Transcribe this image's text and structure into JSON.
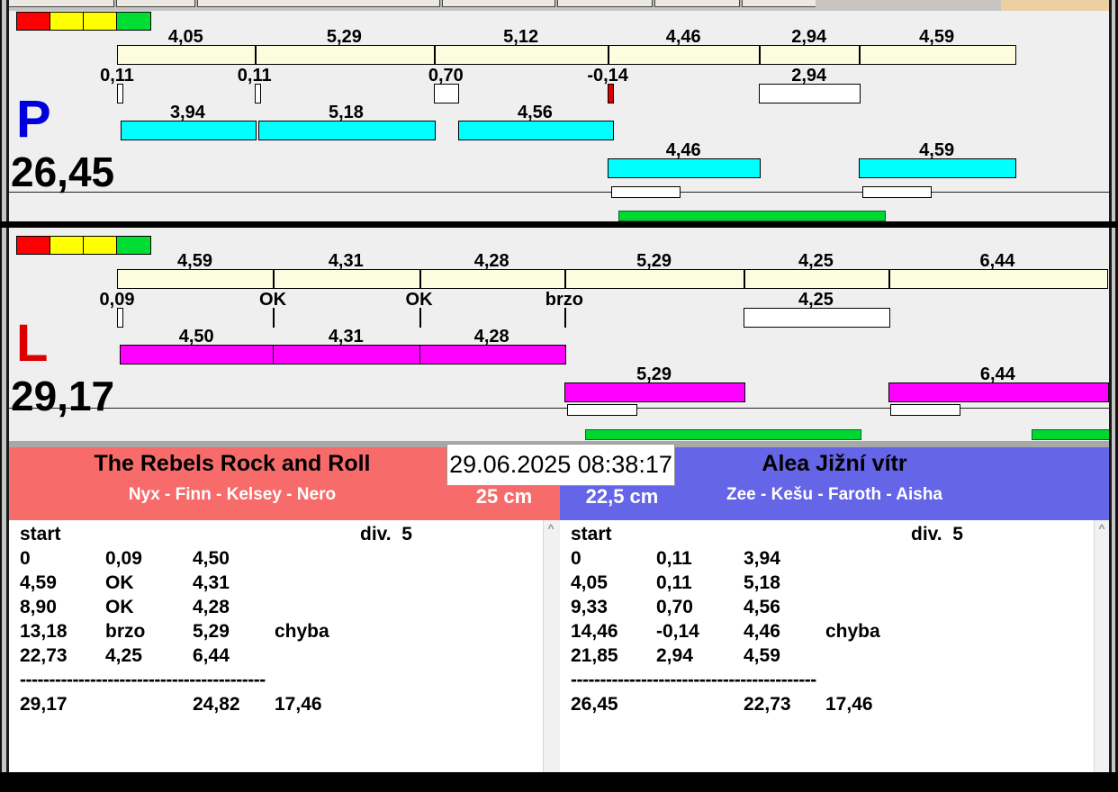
{
  "window": {
    "timestamp": "29.06.2025 08:38:17"
  },
  "traffic_light_colors": [
    "#ff0000",
    "#ffff00",
    "#ffff00",
    "#00dd33"
  ],
  "lanes": [
    {
      "letter": "P",
      "letter_color": "#0000dd",
      "total_label": "26,45",
      "bar_color": "#00ffff",
      "segments": [
        {
          "label": "4,05",
          "t": 4.05
        },
        {
          "label": "5,29",
          "t": 5.29
        },
        {
          "label": "5,12",
          "t": 5.12
        },
        {
          "label": "4,46",
          "t": 4.46
        },
        {
          "label": "2,94",
          "t": 2.94
        },
        {
          "label": "4,59",
          "t": 4.59
        }
      ],
      "ticks": [
        {
          "label": "0,11",
          "type": "box",
          "w": 0.11,
          "color": "#ffffff"
        },
        {
          "label": "0,11",
          "type": "box",
          "w": 0.11,
          "color": "#ffffff"
        },
        {
          "label": "0,70",
          "type": "box",
          "w": 0.7,
          "color": "#ffffff"
        },
        {
          "label": "-0,14",
          "type": "box",
          "w": 0.14,
          "color": "#dd0000"
        },
        {
          "label": "2,94",
          "type": "box",
          "w": 2.94,
          "color": "#ffffff"
        }
      ],
      "runs": [
        {
          "label": "3,94",
          "start": 0.11,
          "dur": 3.94,
          "row": 1
        },
        {
          "label": "5,18",
          "start": 4.16,
          "dur": 5.18,
          "row": 1
        },
        {
          "label": "4,56",
          "start": 10.04,
          "dur": 4.56,
          "row": 1
        },
        {
          "label": "4,46",
          "start": 14.46,
          "dur": 4.46,
          "row": 2
        },
        {
          "label": "4,59",
          "start": 21.86,
          "dur": 4.59,
          "row": 2
        }
      ],
      "white_boxes": [
        {
          "start": 14.55,
          "dur": 2.0
        },
        {
          "start": 21.95,
          "dur": 2.0
        }
      ],
      "green_bars": [
        {
          "start": 14.77,
          "dur": 7.82
        }
      ]
    },
    {
      "letter": "L",
      "letter_color": "#dd0000",
      "total_label": "29,17",
      "bar_color": "#ff00ff",
      "segments": [
        {
          "label": "4,59",
          "t": 4.59
        },
        {
          "label": "4,31",
          "t": 4.31
        },
        {
          "label": "4,28",
          "t": 4.28
        },
        {
          "label": "5,29",
          "t": 5.29
        },
        {
          "label": "4,25",
          "t": 4.25
        },
        {
          "label": "6,44",
          "t": 6.44
        }
      ],
      "ticks": [
        {
          "label": "0,09",
          "type": "box",
          "w": 0.09,
          "color": "#ffffff"
        },
        {
          "label": "OK",
          "type": "line"
        },
        {
          "label": "OK",
          "type": "line"
        },
        {
          "label": "brzo",
          "type": "line"
        },
        {
          "label": "4,25",
          "type": "box",
          "w": 4.25,
          "color": "#ffffff"
        }
      ],
      "runs": [
        {
          "label": "4,50",
          "start": 0.09,
          "dur": 4.5,
          "row": 1
        },
        {
          "label": "4,31",
          "start": 4.59,
          "dur": 4.31,
          "row": 1
        },
        {
          "label": "4,28",
          "start": 8.9,
          "dur": 4.28,
          "row": 1
        },
        {
          "label": "5,29",
          "start": 13.18,
          "dur": 5.29,
          "row": 2
        },
        {
          "label": "6,44",
          "start": 22.73,
          "dur": 6.44,
          "row": 2
        }
      ],
      "white_boxes": [
        {
          "start": 13.27,
          "dur": 2.0
        },
        {
          "start": 22.79,
          "dur": 2.0
        }
      ],
      "green_bars": [
        {
          "start": 13.79,
          "dur": 8.09
        },
        {
          "start": 26.95,
          "dur": 2.5
        }
      ]
    }
  ],
  "teams": {
    "left": {
      "name": "The Rebels Rock and Roll",
      "dogs": "Nyx - Finn - Kelsey - Nero",
      "height": "25 cm",
      "color": "#f76b6b"
    },
    "right": {
      "name": "Alea Jižní vítr",
      "dogs": "Zee - Kešu - Faroth - Aisha",
      "height": "22,5 cm",
      "color": "#6565e8"
    }
  },
  "results": {
    "header": {
      "start": "start",
      "div": "div.  5"
    },
    "separator": "------------------------------------------",
    "scroll_up_glyph": "^",
    "left": {
      "rows": [
        [
          "0",
          "0,09",
          "4,50",
          ""
        ],
        [
          "4,59",
          "OK",
          "4,31",
          ""
        ],
        [
          "8,90",
          "OK",
          "4,28",
          ""
        ],
        [
          "13,18",
          "brzo",
          "5,29",
          "chyba"
        ],
        [
          "22,73",
          "4,25",
          "6,44",
          ""
        ]
      ],
      "totals": [
        "29,17",
        "24,82",
        "17,46"
      ]
    },
    "right": {
      "rows": [
        [
          "0",
          "0,11",
          "3,94",
          ""
        ],
        [
          "4,05",
          "0,11",
          "5,18",
          ""
        ],
        [
          "9,33",
          "0,70",
          "4,56",
          ""
        ],
        [
          "14,46",
          "-0,14",
          "4,46",
          "chyba"
        ],
        [
          "21,85",
          "2,94",
          "4,59",
          ""
        ]
      ],
      "totals": [
        "26,45",
        "22,73",
        "17,46"
      ]
    }
  }
}
